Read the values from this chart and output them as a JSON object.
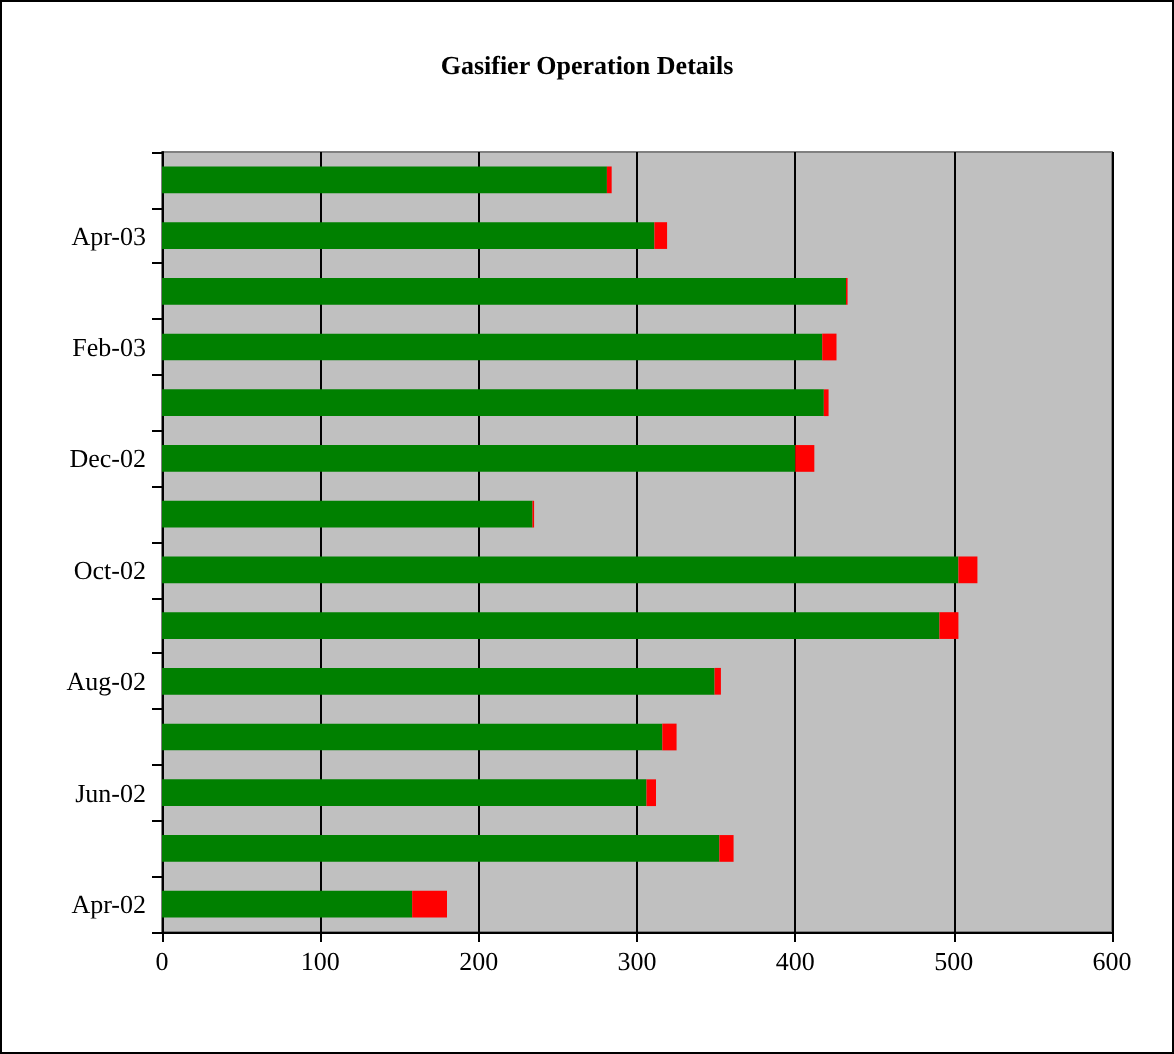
{
  "chart_data": {
    "type": "bar",
    "title": "Gasifier Operation Details",
    "orientation": "horizontal",
    "stacked": true,
    "categories": [
      null,
      "Apr-03",
      null,
      "Feb-03",
      null,
      "Dec-02",
      null,
      "Oct-02",
      null,
      "Aug-02",
      null,
      "Jun-02",
      null,
      "Apr-02"
    ],
    "series": [
      {
        "color": "#008000",
        "values": [
          281,
          311,
          432,
          417,
          418,
          400,
          234,
          503,
          491,
          349,
          316,
          306,
          352,
          158
        ]
      },
      {
        "color": "#ff0000",
        "values": [
          3,
          8,
          1,
          9,
          3,
          12,
          1,
          12,
          12,
          4,
          9,
          6,
          9,
          22
        ]
      }
    ],
    "xlim": [
      0,
      600
    ],
    "xticks": [
      0,
      100,
      200,
      300,
      400,
      500,
      600
    ],
    "grid": "x"
  }
}
